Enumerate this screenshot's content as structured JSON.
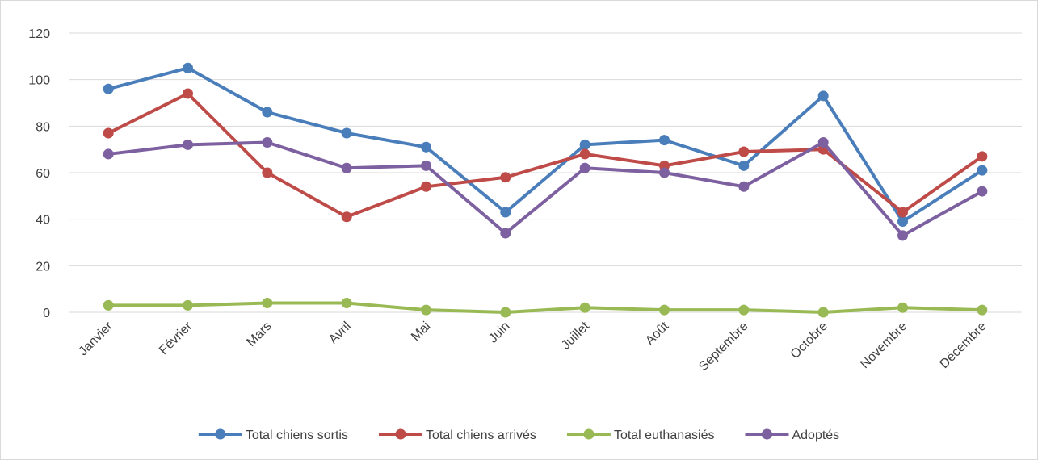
{
  "chart_data": {
    "type": "line",
    "categories": [
      "Janvier",
      "Février",
      "Mars",
      "Avril",
      "Mai",
      "Juin",
      "Juillet",
      "Août",
      "Septembre",
      "Octobre",
      "Novembre",
      "Décembre"
    ],
    "series": [
      {
        "name": "Total chiens sortis",
        "color": "#4a7ebb",
        "values": [
          96,
          105,
          86,
          77,
          71,
          43,
          72,
          74,
          63,
          93,
          39,
          61
        ]
      },
      {
        "name": "Total chiens arrivés",
        "color": "#be4b48",
        "values": [
          77,
          94,
          60,
          41,
          54,
          58,
          68,
          63,
          69,
          70,
          43,
          67
        ]
      },
      {
        "name": "Total euthanasiés",
        "color": "#98b954",
        "values": [
          3,
          3,
          4,
          4,
          1,
          0,
          2,
          1,
          1,
          0,
          2,
          1
        ]
      },
      {
        "name": "Adoptés",
        "color": "#7d60a0",
        "values": [
          68,
          72,
          73,
          62,
          63,
          34,
          62,
          60,
          54,
          73,
          33,
          52
        ]
      }
    ],
    "ylim": [
      0,
      120
    ],
    "yticks": [
      0,
      20,
      40,
      60,
      80,
      100,
      120
    ],
    "grid": true,
    "legend": "bottom"
  }
}
